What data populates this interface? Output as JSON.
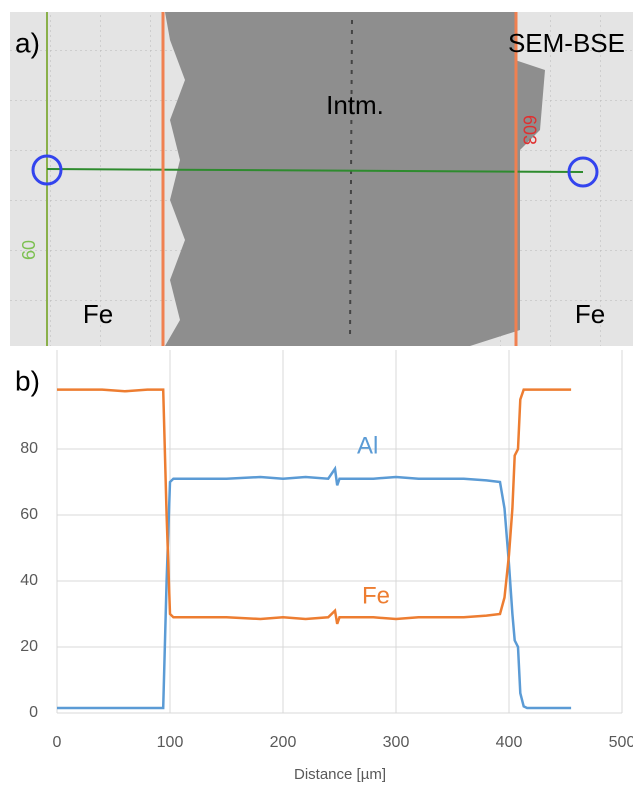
{
  "panel_a": {
    "label": "a)",
    "method": "SEM-BSE",
    "middle": "Intm.",
    "left": "Fe",
    "right": "Fe",
    "marker_right": "603",
    "marker_left": "60"
  },
  "chart_data": {
    "type": "line",
    "panel_label": "b)",
    "xlabel": "Distance [µm]",
    "x": [
      0,
      20,
      40,
      60,
      80,
      94,
      97,
      100,
      103,
      120,
      150,
      180,
      200,
      220,
      240,
      246,
      248,
      250,
      260,
      280,
      300,
      320,
      340,
      360,
      380,
      392,
      396,
      400,
      403,
      405,
      408,
      410,
      413,
      416,
      420,
      440,
      455
    ],
    "series": [
      {
        "name": "Al",
        "color": "#5b9bd5",
        "values": [
          1.5,
          1.5,
          1.5,
          1.5,
          1.5,
          1.5,
          40,
          70,
          71,
          71,
          71,
          71.5,
          71,
          71.5,
          71,
          74,
          69,
          71,
          71,
          71,
          71.5,
          71,
          71,
          71,
          70.5,
          70,
          62,
          45,
          30,
          22,
          20,
          6,
          2,
          1.5,
          1.5,
          1.5,
          1.5
        ]
      },
      {
        "name": "Fe",
        "color": "#ed7d31",
        "values": [
          98,
          98,
          98,
          97.5,
          98,
          98,
          60,
          30,
          29,
          29,
          29,
          28.5,
          29,
          28.5,
          29,
          31,
          27,
          29,
          29,
          29,
          28.5,
          29,
          29,
          29,
          29.5,
          30,
          35,
          48,
          62,
          78,
          80,
          95,
          98,
          98,
          98,
          98,
          98
        ]
      }
    ],
    "xlim": [
      0,
      500
    ],
    "xticks": [
      0,
      100,
      200,
      300,
      400,
      500
    ],
    "ylim": [
      0,
      110
    ],
    "yticks": [
      0,
      20,
      40,
      60,
      80
    ],
    "grid": true
  }
}
